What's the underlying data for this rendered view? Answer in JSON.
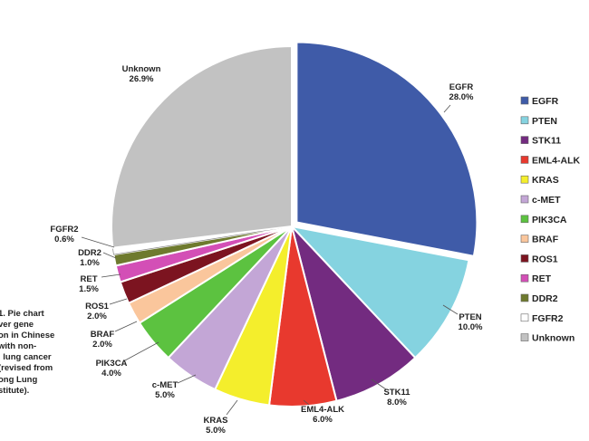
{
  "caption": "1. Pie chart\nver gene\non in Chinese\nwith non-\nl lung cancer\n(revised from\nong Lung\nstitute).",
  "chart_data": {
    "type": "pie",
    "legend_position": "right",
    "slices": [
      {
        "name": "EGFR",
        "value": 28.0,
        "label": "28.0%",
        "color": "#3f5ba8"
      },
      {
        "name": "PTEN",
        "value": 10.0,
        "label": "10.0%",
        "color": "#85d3e0"
      },
      {
        "name": "STK11",
        "value": 8.0,
        "label": "8.0%",
        "color": "#732b80"
      },
      {
        "name": "EML4-ALK",
        "value": 6.0,
        "label": "6.0%",
        "color": "#e8392e"
      },
      {
        "name": "KRAS",
        "value": 5.0,
        "label": "5.0%",
        "color": "#f4ee2c"
      },
      {
        "name": "c-MET",
        "value": 5.0,
        "label": "5.0%",
        "color": "#c3a6d6"
      },
      {
        "name": "PIK3CA",
        "value": 4.0,
        "label": "4.0%",
        "color": "#5cc240"
      },
      {
        "name": "BRAF",
        "value": 2.0,
        "label": "2.0%",
        "color": "#fac69c"
      },
      {
        "name": "ROS1",
        "value": 2.0,
        "label": "2.0%",
        "color": "#7c1420"
      },
      {
        "name": "RET",
        "value": 1.5,
        "label": "1.5%",
        "color": "#d34fb6"
      },
      {
        "name": "DDR2",
        "value": 1.0,
        "label": "1.0%",
        "color": "#6e7a2e"
      },
      {
        "name": "FGFR2",
        "value": 0.6,
        "label": "0.6%",
        "color": "#ffffff"
      },
      {
        "name": "Unknown",
        "value": 26.9,
        "label": "26.9%",
        "color": "#c2c2c2"
      }
    ]
  }
}
